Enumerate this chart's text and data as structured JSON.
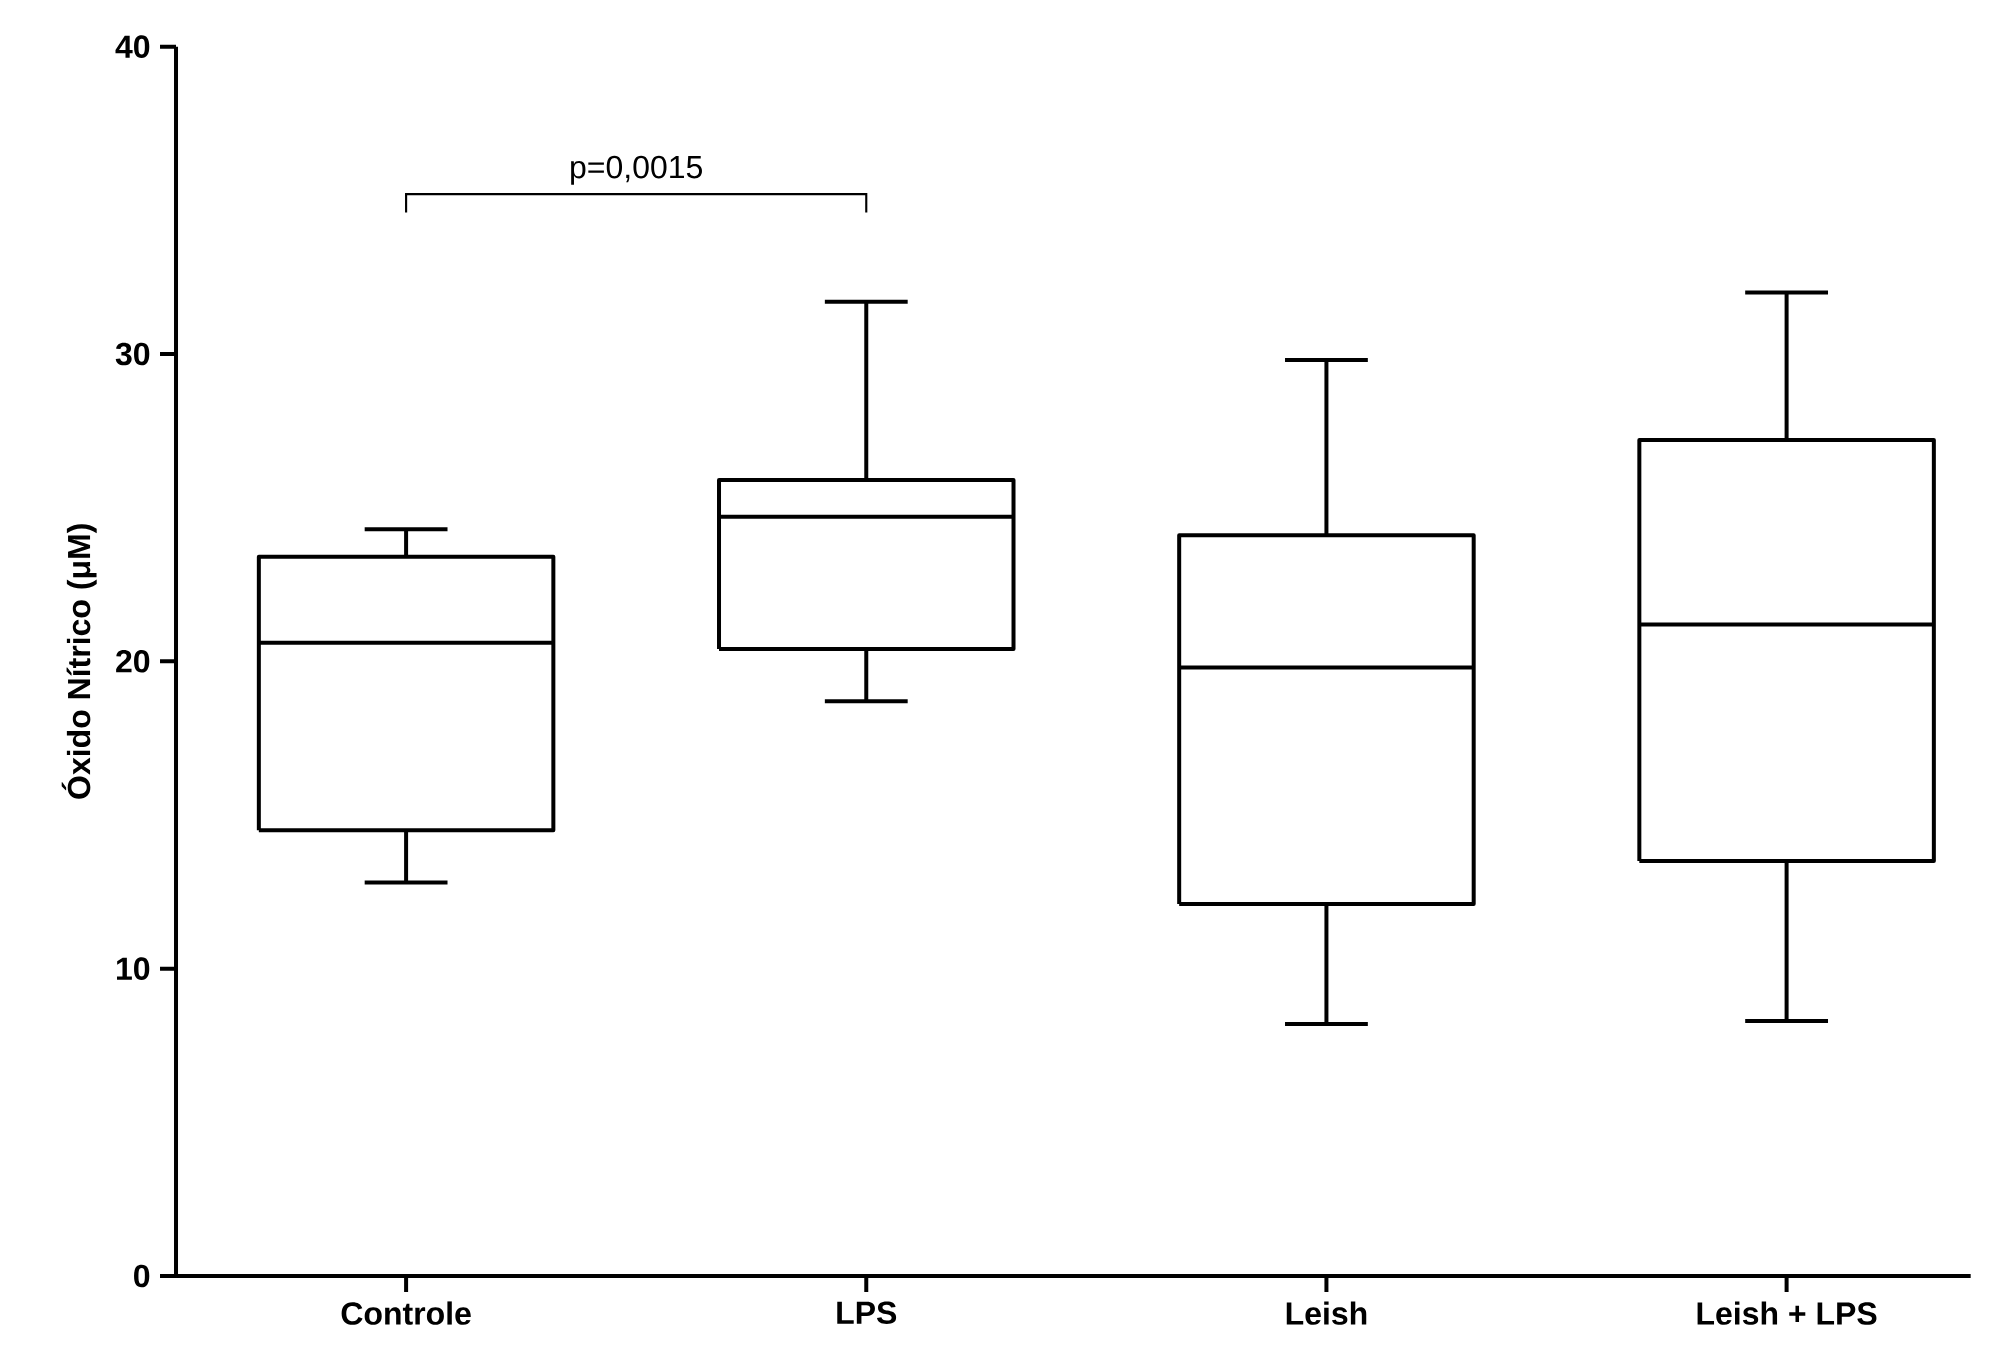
{
  "chart_data": {
    "type": "box",
    "ylabel": "Óxido Nítrico (μM)",
    "categories": [
      "Controle",
      "LPS",
      "Leish",
      "Leish + LPS"
    ],
    "boxes": [
      {
        "low": 12.8,
        "q1": 14.5,
        "median": 20.6,
        "q3": 23.4,
        "high": 24.3
      },
      {
        "low": 18.7,
        "q1": 20.4,
        "median": 24.7,
        "q3": 25.9,
        "high": 31.7
      },
      {
        "low": 8.2,
        "q1": 12.1,
        "median": 19.8,
        "q3": 24.1,
        "high": 29.8
      },
      {
        "low": 8.3,
        "q1": 13.5,
        "median": 21.2,
        "q3": 27.2,
        "high": 32.0
      }
    ],
    "ylim": [
      0,
      40
    ],
    "yticks": [
      0,
      10,
      20,
      30,
      40
    ],
    "color": "#000000",
    "annotations": [
      "p=0,0015"
    ]
  }
}
